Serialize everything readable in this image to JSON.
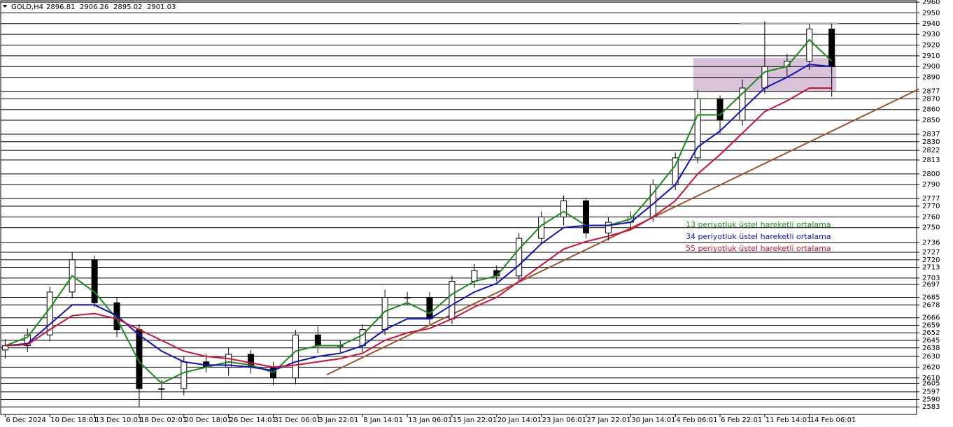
{
  "chart_data": {
    "type": "candlestick",
    "symbol": "GOLD,H4",
    "ohlc": [
      2896.81,
      2906.26,
      2895.02,
      2901.03
    ],
    "categories": [
      "6 Dec 2024",
      null,
      "10 Dec 18:01",
      null,
      "13 Dec 10:01",
      null,
      "18 Dec 02:01",
      null,
      "20 Dec 18:01",
      null,
      "26 Dec 14:01",
      null,
      "31 Dec 06:01",
      null,
      "3 Jan 22:01",
      null,
      "8 Jan 14:01",
      null,
      "13 Jan 06:01",
      null,
      "15 Jan 22:01",
      null,
      "20 Jan 14:01",
      null,
      "23 Jan 06:01",
      null,
      "27 Jan 22:01",
      null,
      "30 Jan 14:01",
      null,
      "4 Feb 06:01",
      null,
      "6 Feb 22:01",
      null,
      "11 Feb 14:01",
      null,
      "14 Feb 06:01",
      null
    ],
    "open": [
      2636,
      2640,
      2650,
      2690,
      2720,
      2680,
      2655,
      2600,
      2600,
      2625,
      2620,
      2632,
      2620,
      2610,
      2650,
      2640,
      2640,
      2655,
      2685,
      2685,
      2665,
      2700,
      2710,
      2705,
      2740,
      2760,
      2775,
      2745,
      2755,
      2760,
      2790,
      2815,
      2870,
      2850,
      2880,
      2900,
      2905,
      2935
    ],
    "high": [
      2646,
      2656,
      2695,
      2727,
      2724,
      2685,
      2660,
      2608,
      2630,
      2632,
      2638,
      2636,
      2625,
      2655,
      2658,
      2645,
      2660,
      2692,
      2690,
      2690,
      2705,
      2716,
      2715,
      2745,
      2765,
      2780,
      2778,
      2760,
      2765,
      2795,
      2820,
      2878,
      2873,
      2888,
      2942,
      2912,
      2940,
      2940
    ],
    "low": [
      2628,
      2634,
      2644,
      2684,
      2676,
      2648,
      2583,
      2590,
      2594,
      2615,
      2612,
      2614,
      2603,
      2604,
      2633,
      2634,
      2634,
      2650,
      2678,
      2660,
      2660,
      2694,
      2700,
      2700,
      2735,
      2752,
      2740,
      2738,
      2748,
      2755,
      2785,
      2810,
      2838,
      2845,
      2875,
      2890,
      2897,
      2872
    ],
    "close": [
      2640,
      2650,
      2690,
      2720,
      2680,
      2655,
      2600,
      2600,
      2625,
      2620,
      2632,
      2620,
      2610,
      2650,
      2640,
      2640,
      2655,
      2685,
      2685,
      2665,
      2700,
      2710,
      2705,
      2740,
      2760,
      2775,
      2745,
      2755,
      2760,
      2790,
      2815,
      2870,
      2850,
      2880,
      2900,
      2905,
      2935,
      2900
    ],
    "series": [
      {
        "name": "13 periyotluk üstel hareketli ortalama",
        "color": "#1a8a1a",
        "values": [
          2640,
          2648,
          2675,
          2705,
          2690,
          2665,
          2625,
          2605,
          2615,
          2620,
          2625,
          2622,
          2615,
          2635,
          2640,
          2640,
          2650,
          2672,
          2680,
          2670,
          2688,
          2700,
          2705,
          2730,
          2752,
          2765,
          2752,
          2752,
          2758,
          2782,
          2808,
          2855,
          2855,
          2875,
          2895,
          2900,
          2925,
          2905
        ]
      },
      {
        "name": "34 periyotluk üstel hareketli ortalama",
        "color": "#1010c0",
        "values": [
          2640,
          2642,
          2660,
          2678,
          2678,
          2668,
          2650,
          2635,
          2625,
          2622,
          2622,
          2620,
          2617,
          2625,
          2630,
          2633,
          2640,
          2655,
          2665,
          2665,
          2678,
          2690,
          2698,
          2715,
          2735,
          2750,
          2752,
          2752,
          2755,
          2772,
          2790,
          2825,
          2840,
          2860,
          2880,
          2890,
          2902,
          2900
        ]
      },
      {
        "name": "55 periyotluk üstel hareketli ortalama",
        "color": "#d0103a",
        "values": [
          2640,
          2641,
          2655,
          2668,
          2670,
          2665,
          2655,
          2645,
          2635,
          2630,
          2628,
          2624,
          2620,
          2622,
          2625,
          2628,
          2633,
          2645,
          2652,
          2656,
          2665,
          2676,
          2685,
          2700,
          2715,
          2730,
          2737,
          2742,
          2748,
          2760,
          2775,
          2800,
          2818,
          2838,
          2858,
          2868,
          2880,
          2880
        ]
      }
    ],
    "trend_line": {
      "x": [
        14.4,
        40.9
      ],
      "values": [
        2613,
        2879
      ],
      "color": "#a0522d"
    },
    "zone": {
      "x": [
        30.8,
        37.2
      ],
      "values": [
        2877,
        2908
      ],
      "color": "#c8aacb"
    },
    "resistance": {
      "x": [
        32.9,
        37.3
      ],
      "value": 2940,
      "color": "#b0b0b0"
    },
    "xlim": [
      -0.2,
      40.8
    ],
    "ylim": [
      2576,
      2962
    ],
    "yticks": [
      2960,
      2950,
      2940,
      2930,
      2920,
      2910,
      2900,
      2890,
      2877,
      2870,
      2860,
      2850,
      2837,
      2830,
      2822,
      2813,
      2800,
      2790,
      2777,
      2770,
      2760,
      2750,
      2736,
      2727,
      2720,
      2713,
      2703,
      2697,
      2685,
      2678,
      2666,
      2659,
      2652,
      2645,
      2638,
      2630,
      2620,
      2610,
      2605,
      2597,
      2590,
      2583
    ],
    "grid": true
  }
}
